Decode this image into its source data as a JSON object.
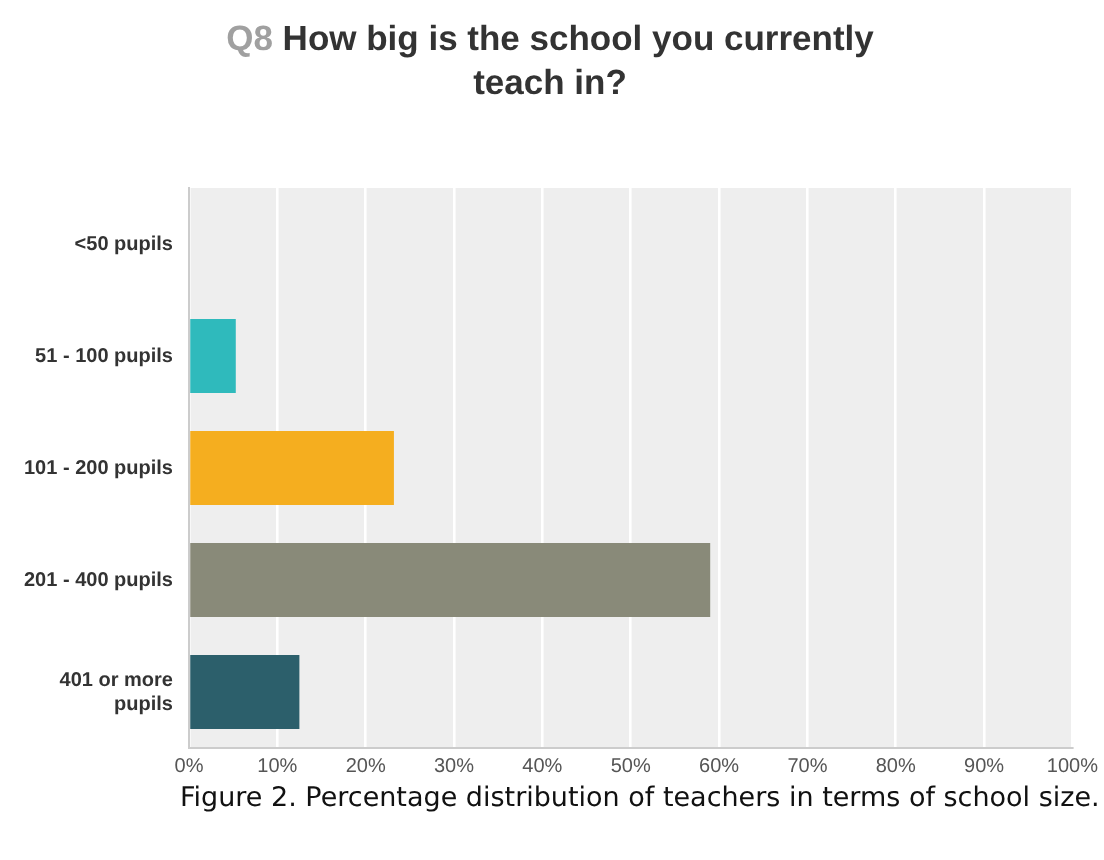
{
  "chart_data": {
    "type": "bar",
    "orientation": "horizontal",
    "title": "Q8 How big is the school you currently teach in?",
    "categories": [
      "<50 pupils",
      "51 - 100 pupils",
      "101 - 200 pupils",
      "201 - 400 pupils",
      "401 or more pupils"
    ],
    "values": [
      0,
      5.3,
      23.2,
      59,
      12.5
    ],
    "colors": [
      "#2fbabc",
      "#2fbabc",
      "#f5ae1f",
      "#898a79",
      "#2c5f6b"
    ],
    "xlim": [
      0,
      100
    ],
    "xticks": [
      {
        "value": 0,
        "label": "0%"
      },
      {
        "value": 10,
        "label": "10%"
      },
      {
        "value": 20,
        "label": "20%"
      },
      {
        "value": 30,
        "label": "30%"
      },
      {
        "value": 40,
        "label": "40%"
      },
      {
        "value": 50,
        "label": "50%"
      },
      {
        "value": 60,
        "label": "60%"
      },
      {
        "value": 70,
        "label": "70%"
      },
      {
        "value": 80,
        "label": "80%"
      },
      {
        "value": 90,
        "label": "90%"
      },
      {
        "value": 100,
        "label": "100%"
      }
    ],
    "grid": "x",
    "legend": false,
    "annotations": [
      "Figure 2. Percentage distribution of teachers in terms of school size."
    ]
  }
}
